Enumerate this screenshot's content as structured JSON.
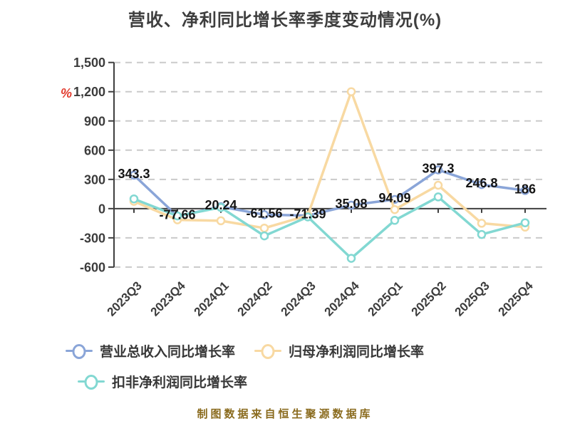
{
  "title": "营收、净利同比增长率季度变动情况(%)",
  "y_axis_unit": "%",
  "footer": "制图数据来自恒生聚源数据库",
  "colors": {
    "revenue": "#8aa5d8",
    "net_profit": "#f8d9a2",
    "non_gaap": "#82d8d2",
    "axis": "#3f3f3f",
    "grid": "#cacaca",
    "data_label": "#141414",
    "unit_badge": "#e23b2e",
    "footer_text": "#8a6b1e"
  },
  "chart_data": {
    "type": "line",
    "categories": [
      "2023Q3",
      "2023Q4",
      "2024Q1",
      "2024Q2",
      "2024Q3",
      "2024Q4",
      "2025Q1",
      "2025Q2",
      "2025Q3",
      "2025Q4"
    ],
    "series": [
      {
        "name": "营业总收入同比增长率",
        "color": "#8aa5d8",
        "values": [
          343.3,
          -77.66,
          20.24,
          -61.56,
          -71.39,
          35.08,
          94.09,
          397.3,
          246.8,
          186
        ],
        "labels": [
          "343.3",
          "-77.66",
          "20.24",
          "-61.56",
          "-71.39",
          "35.08",
          "94.09",
          "397.3",
          "246.8",
          "186"
        ],
        "show_labels": true
      },
      {
        "name": "归母净利润同比增长率",
        "color": "#f8d9a2",
        "values": [
          75,
          -115,
          -125,
          -200,
          -70,
          1200,
          -10,
          240,
          -150,
          -190
        ],
        "show_labels": false
      },
      {
        "name": "扣非净利润同比增长率",
        "color": "#82d8d2",
        "values": [
          100,
          -75,
          12,
          -280,
          -85,
          -510,
          -120,
          120,
          -265,
          -145
        ],
        "show_labels": false
      }
    ],
    "yticks": [
      {
        "label": "1,500",
        "value": 1500
      },
      {
        "label": "1,200",
        "value": 1200
      },
      {
        "label": "900",
        "value": 900
      },
      {
        "label": "600",
        "value": 600
      },
      {
        "label": "300",
        "value": 300
      },
      {
        "label": "0",
        "value": 0
      },
      {
        "label": "-300",
        "value": -300
      },
      {
        "label": "-600",
        "value": -600
      }
    ],
    "ylim": [
      -600,
      1500
    ],
    "grid": "horizontal-dashed",
    "legend_position": "bottom-left",
    "x_label_rotation": -45
  }
}
